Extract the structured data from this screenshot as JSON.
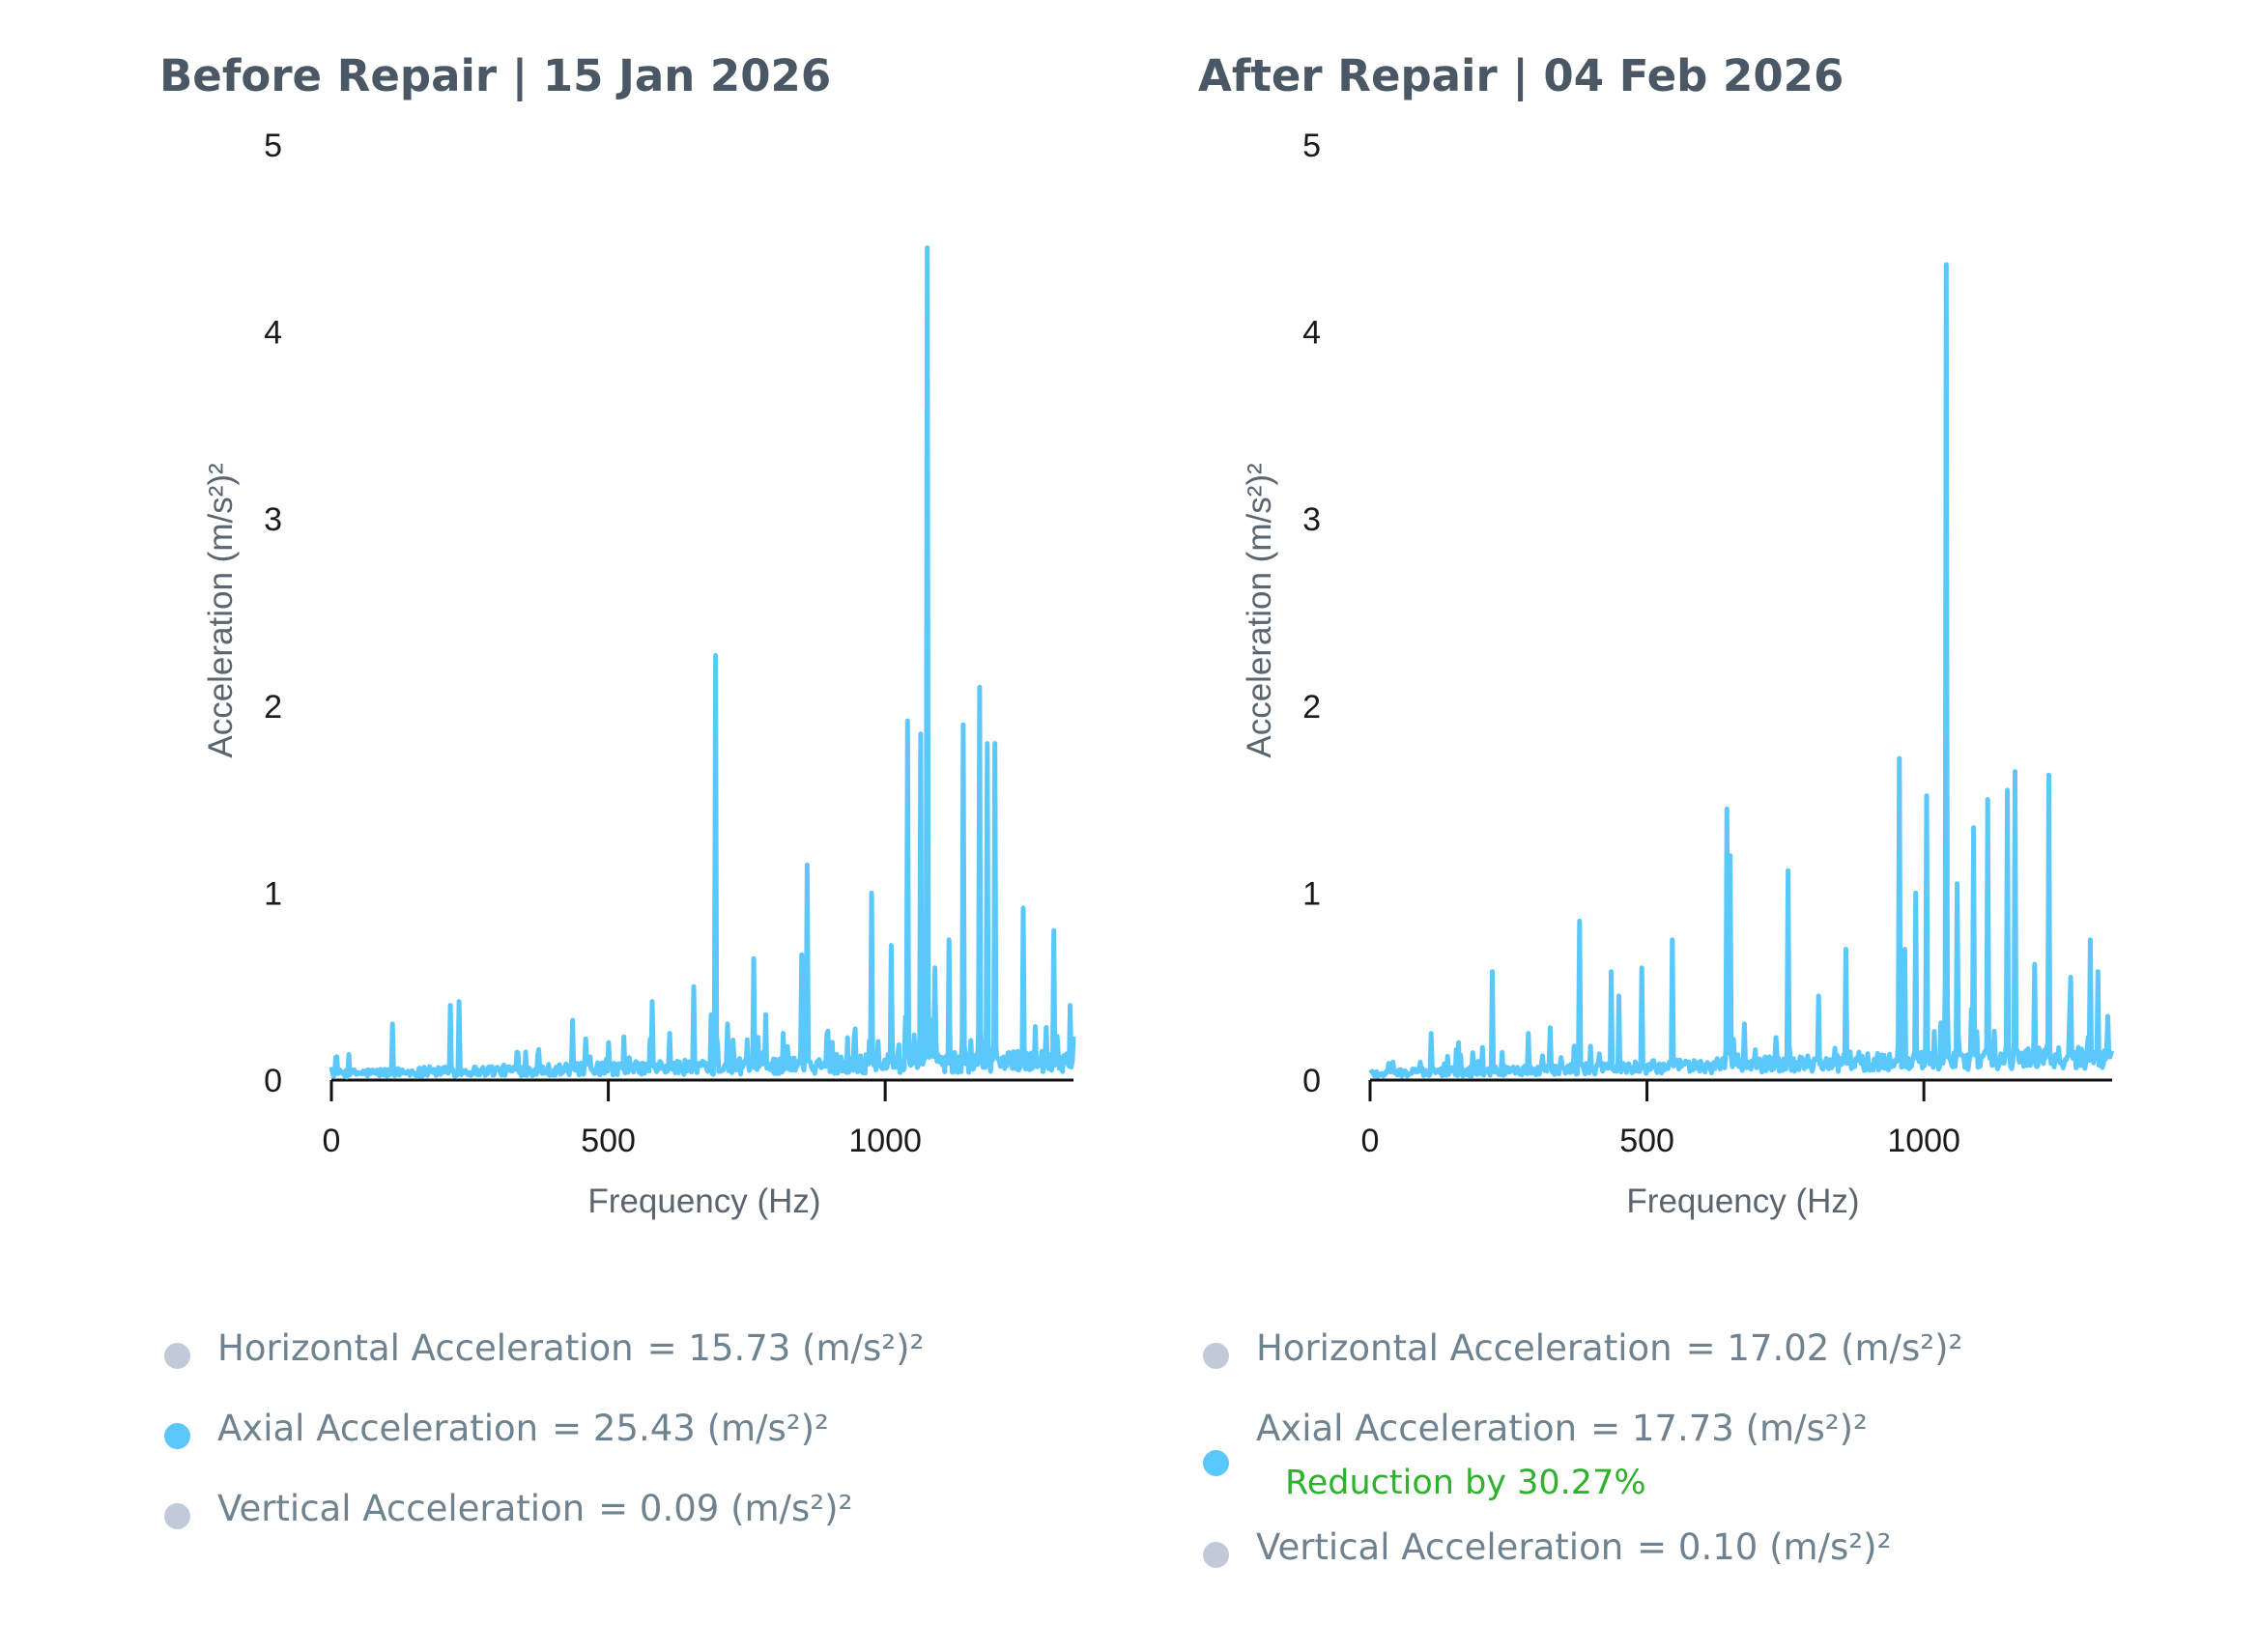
{
  "charts": [
    {
      "title": "Before Repair | 15 Jan 2026",
      "legend": [
        {
          "label": "Horizontal Acceleration",
          "value": "= 15.73 (m/s²)²",
          "color": "#c1cad8"
        },
        {
          "label": "Axial Acceleration",
          "value": "= 25.43 (m/s²)²",
          "color": "#5ac8fa"
        },
        {
          "label": "Vertical Acceleration",
          "value": "= 0.09 (m/s²)²",
          "color": "#c1cad8"
        }
      ]
    },
    {
      "title": "After Repair | 04 Feb 2026",
      "legend": [
        {
          "label": "Horizontal Acceleration",
          "value": "= 17.02 (m/s²)²",
          "color": "#c1cad8"
        },
        {
          "label": "Axial Acceleration",
          "value": "= 17.73 (m/s²)²",
          "color": "#5ac8fa",
          "note": "Reduction by 30.27%"
        },
        {
          "label": "Vertical Acceleration",
          "value": "= 0.10 (m/s²)²",
          "color": "#c1cad8"
        }
      ]
    }
  ],
  "chart_data": [
    {
      "type": "line",
      "title": "Before Repair | 15 Jan 2026",
      "xlabel": "Frequency (Hz)",
      "ylabel": "Acceleration (m/s²)²",
      "xlim": [
        0,
        1340
      ],
      "ylim": [
        0,
        5
      ],
      "xticks": [
        0,
        500,
        1000
      ],
      "yticks": [
        0,
        1,
        2,
        3,
        4,
        5
      ],
      "series": [
        {
          "name": "Axial Acceleration",
          "color": "#5ac8fa",
          "peaks": [
            [
              110,
              0.3
            ],
            [
              215,
              0.4
            ],
            [
              230,
              0.42
            ],
            [
              350,
              0.15
            ],
            [
              435,
              0.32
            ],
            [
              460,
              0.22
            ],
            [
              500,
              0.2
            ],
            [
              580,
              0.42
            ],
            [
              610,
              0.25
            ],
            [
              655,
              0.5
            ],
            [
              685,
              0.35
            ],
            [
              694,
              2.27
            ],
            [
              715,
              0.3
            ],
            [
              762,
              0.65
            ],
            [
              785,
              0.35
            ],
            [
              815,
              0.25
            ],
            [
              850,
              0.67
            ],
            [
              860,
              1.15
            ],
            [
              975,
              1.0
            ],
            [
              1010,
              0.72
            ],
            [
              1040,
              1.92
            ],
            [
              1065,
              1.85
            ],
            [
              1075,
              4.45
            ],
            [
              1090,
              0.6
            ],
            [
              1115,
              0.75
            ],
            [
              1140,
              1.9
            ],
            [
              1170,
              2.1
            ],
            [
              1185,
              1.8
            ],
            [
              1198,
              1.8
            ],
            [
              1250,
              0.92
            ],
            [
              1305,
              0.8
            ],
            [
              1335,
              0.4
            ]
          ]
        }
      ]
    },
    {
      "type": "line",
      "title": "After Repair | 04 Feb 2026",
      "xlabel": "Frequency (Hz)",
      "ylabel": "Acceleration (m/s²)²",
      "xlim": [
        0,
        1340
      ],
      "ylim": [
        0,
        5
      ],
      "xticks": [
        0,
        500,
        1000
      ],
      "yticks": [
        0,
        1,
        2,
        3,
        4,
        5
      ],
      "series": [
        {
          "name": "Axial Acceleration",
          "color": "#5ac8fa",
          "peaks": [
            [
              110,
              0.25
            ],
            [
              160,
              0.2
            ],
            [
              220,
              0.58
            ],
            [
              285,
              0.25
            ],
            [
              325,
              0.28
            ],
            [
              378,
              0.85
            ],
            [
              435,
              0.58
            ],
            [
              450,
              0.45
            ],
            [
              490,
              0.6
            ],
            [
              545,
              0.75
            ],
            [
              645,
              1.45
            ],
            [
              650,
              1.2
            ],
            [
              675,
              0.3
            ],
            [
              755,
              1.12
            ],
            [
              810,
              0.45
            ],
            [
              860,
              0.7
            ],
            [
              955,
              1.72
            ],
            [
              965,
              0.7
            ],
            [
              985,
              1.0
            ],
            [
              1005,
              1.52
            ],
            [
              1040,
              4.36
            ],
            [
              1060,
              1.05
            ],
            [
              1085,
              0.38
            ],
            [
              1090,
              1.35
            ],
            [
              1115,
              1.5
            ],
            [
              1150,
              1.55
            ],
            [
              1165,
              1.65
            ],
            [
              1200,
              0.62
            ],
            [
              1225,
              1.63
            ],
            [
              1265,
              0.55
            ],
            [
              1300,
              0.75
            ],
            [
              1315,
              0.58
            ],
            [
              1335,
              0.15
            ]
          ]
        }
      ]
    }
  ]
}
